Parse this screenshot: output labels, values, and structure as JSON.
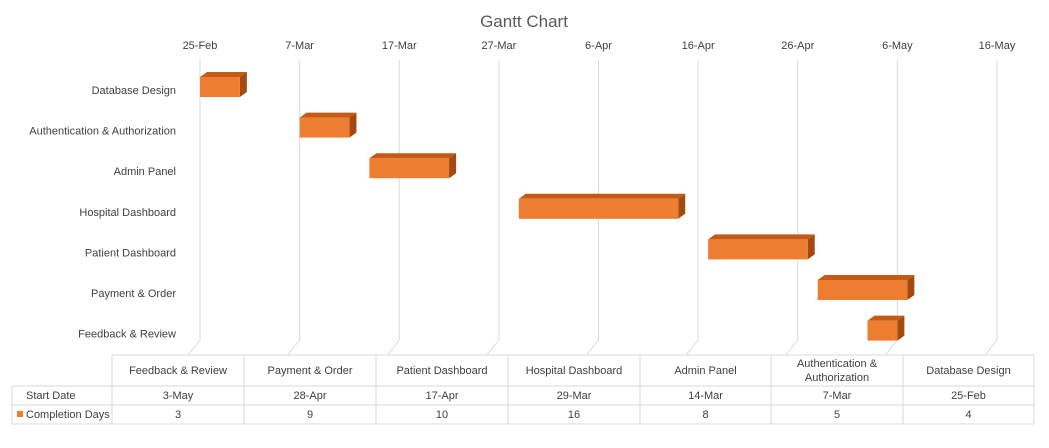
{
  "chart_data": {
    "type": "bar",
    "subtype": "gantt-3d-stacked-horizontal",
    "title": "Gantt Chart",
    "xlabel": "",
    "ylabel": "",
    "x_ticks": [
      "25-Feb",
      "7-Mar",
      "17-Mar",
      "27-Mar",
      "6-Apr",
      "16-Apr",
      "26-Apr",
      "6-May",
      "16-May"
    ],
    "categories": [
      "Database Design",
      "Authentication & Authorization",
      "Admin Panel",
      "Hospital Dashboard",
      "Patient Dashboard",
      "Payment & Order",
      "Feedback & Review"
    ],
    "series": [
      {
        "name": "Start Date",
        "values": [
          "25-Feb",
          "7-Mar",
          "14-Mar",
          "29-Mar",
          "17-Apr",
          "28-Apr",
          "3-May"
        ],
        "visible": false
      },
      {
        "name": "Completion Days",
        "values": [
          4,
          5,
          8,
          16,
          10,
          9,
          3
        ],
        "color": "#ED7D31"
      }
    ],
    "grid": true,
    "legend": "data-table",
    "data_table": {
      "columns": [
        "Feedback & Review",
        "Payment & Order",
        "Patient Dashboard",
        "Hospital Dashboard",
        "Admin Panel",
        "Authentication & Authorization",
        "Database Design"
      ],
      "column_lines": [
        [
          "Feedback & Review"
        ],
        [
          "Payment & Order"
        ],
        [
          "Patient Dashboard"
        ],
        [
          "Hospital Dashboard"
        ],
        [
          "Admin Panel"
        ],
        [
          "Authentication &",
          "Authorization"
        ],
        [
          "Database Design"
        ]
      ],
      "rows": [
        {
          "label": "Start Date",
          "values": [
            "3-May",
            "28-Apr",
            "17-Apr",
            "29-Mar",
            "14-Mar",
            "7-Mar",
            "25-Feb"
          ]
        },
        {
          "label": "Completion Days",
          "values": [
            "3",
            "9",
            "10",
            "16",
            "8",
            "5",
            "4"
          ],
          "legend_color": "#ED7D31"
        }
      ]
    }
  }
}
